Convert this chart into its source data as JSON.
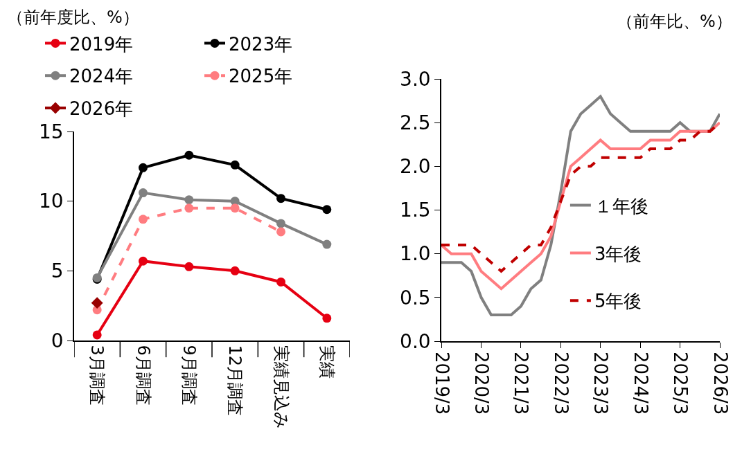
{
  "chart_data": [
    {
      "type": "line",
      "ylabel": "（前年度比、%）",
      "categories": [
        "3月調査",
        "6月調査",
        "9月調査",
        "12月調査",
        "実績見込み",
        "実績"
      ],
      "ylim": [
        0,
        15
      ],
      "yticks": [
        0,
        5,
        10,
        15
      ],
      "grid": false,
      "legend": "top left",
      "series": [
        {
          "name": "2019年",
          "color": "#e60012",
          "marker": "circle",
          "line_style": "solid",
          "values": [
            0.4,
            5.7,
            5.3,
            5.0,
            4.2,
            1.6
          ]
        },
        {
          "name": "2023年",
          "color": "#000000",
          "marker": "circle",
          "line_style": "solid",
          "values": [
            4.4,
            12.4,
            13.3,
            12.6,
            10.2,
            9.4
          ]
        },
        {
          "name": "2024年",
          "color": "#808080",
          "marker": "circle",
          "line_style": "solid",
          "values": [
            4.5,
            10.6,
            10.1,
            10.0,
            8.4,
            6.9
          ]
        },
        {
          "name": "2025年",
          "color": "#ff7c80",
          "marker": "circle",
          "line_style": "dashed",
          "values": [
            2.2,
            8.7,
            9.5,
            9.5,
            7.8,
            null
          ]
        },
        {
          "name": "2026年",
          "color": "#990000",
          "marker": "diamond",
          "line_style": "solid",
          "values": [
            2.7,
            null,
            null,
            null,
            null,
            null
          ]
        }
      ]
    },
    {
      "type": "line",
      "ylabel": "（前年比、%）",
      "x": [
        "2019-03",
        "2019-06",
        "2019-09",
        "2019-12",
        "2020-03",
        "2020-06",
        "2020-09",
        "2020-12",
        "2021-03",
        "2021-06",
        "2021-09",
        "2021-12",
        "2022-03",
        "2022-06",
        "2022-09",
        "2022-12",
        "2023-03",
        "2023-06",
        "2023-09",
        "2023-12",
        "2024-03",
        "2024-06",
        "2024-09",
        "2024-12",
        "2025-03",
        "2025-06",
        "2025-09",
        "2025-12",
        "2026-03"
      ],
      "xlim": [
        "2019-03",
        "2026-03"
      ],
      "xticks": [
        {
          "value": "2019-03",
          "label": "2019/3"
        },
        {
          "value": "2020-03",
          "label": "2020/3"
        },
        {
          "value": "2021-03",
          "label": "2021/3"
        },
        {
          "value": "2022-03",
          "label": "2022/3"
        },
        {
          "value": "2023-03",
          "label": "2023/3"
        },
        {
          "value": "2024-03",
          "label": "2024/3"
        },
        {
          "value": "2025-03",
          "label": "2025/3"
        },
        {
          "value": "2026-03",
          "label": "2026/3"
        }
      ],
      "ylim": [
        0,
        3
      ],
      "yticks": [
        {
          "value": 0,
          "label": "0.0"
        },
        {
          "value": 0.5,
          "label": "0.5"
        },
        {
          "value": 1,
          "label": "1.0"
        },
        {
          "value": 1.5,
          "label": "1.5"
        },
        {
          "value": 2,
          "label": "2.0"
        },
        {
          "value": 2.5,
          "label": "2.5"
        },
        {
          "value": 3,
          "label": "3.0"
        }
      ],
      "grid": false,
      "legend": "bottom right",
      "marker": "none",
      "series": [
        {
          "name": "１年後",
          "color": "#808080",
          "line_style": "solid",
          "values": [
            0.9,
            0.9,
            0.9,
            0.8,
            0.5,
            0.3,
            0.3,
            0.3,
            0.4,
            0.6,
            0.7,
            1.1,
            1.7,
            2.4,
            2.6,
            2.7,
            2.8,
            2.6,
            2.5,
            2.4,
            2.4,
            2.4,
            2.4,
            2.4,
            2.5,
            2.4,
            2.4,
            2.4,
            2.6
          ]
        },
        {
          "name": "3年後",
          "color": "#ff7c80",
          "line_style": "solid",
          "values": [
            1.1,
            1.0,
            1.0,
            1.0,
            0.8,
            0.7,
            0.6,
            0.7,
            0.8,
            0.9,
            1.0,
            1.2,
            1.6,
            2.0,
            2.1,
            2.2,
            2.3,
            2.2,
            2.2,
            2.2,
            2.2,
            2.3,
            2.3,
            2.3,
            2.4,
            2.4,
            2.4,
            2.4,
            2.5
          ]
        },
        {
          "name": "5年後",
          "color": "#c00000",
          "line_style": "dashed",
          "values": [
            1.1,
            1.1,
            1.1,
            1.1,
            1.0,
            0.9,
            0.8,
            0.9,
            1.0,
            1.1,
            1.1,
            1.3,
            1.6,
            1.9,
            2.0,
            2.0,
            2.1,
            2.1,
            2.1,
            2.1,
            2.1,
            2.2,
            2.2,
            2.2,
            2.3,
            2.3,
            2.4,
            2.4,
            2.5
          ]
        }
      ]
    }
  ]
}
